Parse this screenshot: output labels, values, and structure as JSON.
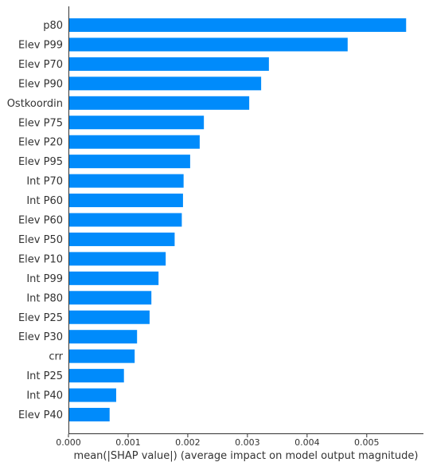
{
  "chart_data": {
    "type": "bar",
    "orientation": "horizontal",
    "categories": [
      "p80",
      "Elev P99",
      "Elev P70",
      "Elev P90",
      "Ostkoordin",
      "Elev P75",
      "Elev P20",
      "Elev P95",
      "Int P70",
      "Int P60",
      "Elev P60",
      "Elev P50",
      "Elev P10",
      "Int P99",
      "Int P80",
      "Elev P25",
      "Elev P30",
      "crr",
      "Int P25",
      "Int P40",
      "Elev P40"
    ],
    "values": [
      0.00566,
      0.00468,
      0.00336,
      0.00323,
      0.00303,
      0.00227,
      0.0022,
      0.00204,
      0.00193,
      0.00192,
      0.0019,
      0.00178,
      0.00163,
      0.00151,
      0.00139,
      0.00136,
      0.00115,
      0.00111,
      0.00093,
      0.0008,
      0.00069
    ],
    "xlabel": "mean(|SHAP value|) (average impact on model output magnitude)",
    "ylabel": "",
    "xlim": [
      0,
      0.00595
    ],
    "xticks": [
      "0.000",
      "0.001",
      "0.002",
      "0.003",
      "0.004",
      "0.005"
    ],
    "xtick_values": [
      0,
      0.001,
      0.002,
      0.003,
      0.004,
      0.005
    ],
    "grid": false,
    "bar_color": "#008bfb"
  }
}
